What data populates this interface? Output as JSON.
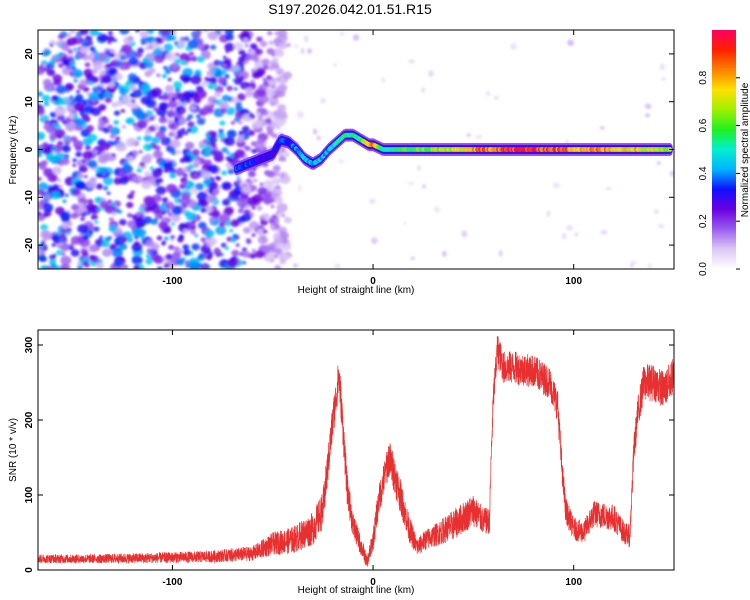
{
  "title": "S197.2026.042.01.51.R15",
  "chart_data": [
    {
      "type": "heatmap",
      "panel": "spectrogram",
      "xlabel": "Height of straight line (km)",
      "ylabel": "Frequency (Hz)",
      "xlim": [
        -167,
        150
      ],
      "ylim": [
        -25,
        25
      ],
      "xticks": [
        -100,
        0,
        100
      ],
      "xtick_labels": [
        "-100",
        "0",
        "100"
      ],
      "yticks": [
        -20,
        -10,
        0,
        10,
        20
      ],
      "ytick_labels": [
        "-20",
        "-10",
        "0",
        "10",
        "20"
      ],
      "colorbar": {
        "label": "Normalized spectral amplitude",
        "range": [
          0,
          1
        ],
        "ticks": [
          0.0,
          0.2,
          0.4,
          0.6,
          0.8
        ],
        "tick_labels": [
          "0.0",
          "0.2",
          "0.4",
          "0.6",
          "0.8"
        ],
        "colormap": [
          "#ffffff",
          "#dcc8f5",
          "#9a5cf0",
          "#6a00e0",
          "#1010ff",
          "#00b4ff",
          "#00f0d0",
          "#20f020",
          "#a0f000",
          "#ffe000",
          "#ff8000",
          "#ff2000",
          "#ff0060"
        ]
      },
      "noise_region_x": [
        -167,
        -42
      ],
      "ridge": {
        "x": [
          -68,
          -62,
          -56,
          -50,
          -46,
          -42,
          -38,
          -34,
          -30,
          -26,
          -22,
          -18,
          -14,
          -10,
          -6,
          -2,
          0,
          5,
          10,
          20,
          40,
          60,
          80,
          100,
          120,
          140,
          148
        ],
        "freq": [
          -4,
          -3,
          -2,
          -1,
          2,
          1.5,
          0,
          -2,
          -3,
          -2,
          0,
          1.5,
          3,
          3,
          2,
          1,
          1,
          0,
          0,
          0,
          0,
          0,
          0,
          0,
          0,
          0,
          0
        ],
        "amplitude": [
          0.4,
          0.35,
          0.3,
          0.3,
          0.35,
          0.35,
          0.4,
          0.45,
          0.45,
          0.45,
          0.45,
          0.5,
          0.55,
          0.55,
          0.6,
          0.75,
          0.8,
          0.5,
          0.55,
          0.6,
          0.7,
          0.9,
          0.95,
          0.85,
          0.8,
          0.75,
          0.7
        ]
      }
    },
    {
      "type": "line",
      "panel": "snr",
      "xlabel": "Height of straight line (km)",
      "ylabel": "SNR (10 * v/v)",
      "xlim": [
        -167,
        150
      ],
      "ylim": [
        0,
        320
      ],
      "xticks": [
        -100,
        0,
        100
      ],
      "xtick_labels": [
        "-100",
        "0",
        "100"
      ],
      "yticks": [
        0,
        100,
        200,
        300
      ],
      "ytick_labels": [
        "0",
        "100",
        "200",
        "300"
      ],
      "color": "#e83030",
      "series": [
        {
          "name": "SNR",
          "x": [
            -167,
            -140,
            -110,
            -80,
            -60,
            -50,
            -40,
            -30,
            -25,
            -20,
            -17,
            -15,
            -13,
            -10,
            -5,
            -3,
            0,
            3,
            8,
            12,
            18,
            22,
            26,
            30,
            40,
            50,
            55,
            58,
            59,
            60,
            62,
            65,
            70,
            80,
            88,
            92,
            94,
            96,
            100,
            105,
            110,
            120,
            125,
            128,
            130,
            132,
            135,
            140,
            145,
            150
          ],
          "y": [
            15,
            15,
            16,
            18,
            22,
            35,
            40,
            55,
            80,
            200,
            260,
            190,
            110,
            60,
            25,
            10,
            40,
            95,
            150,
            115,
            55,
            30,
            40,
            45,
            60,
            80,
            65,
            65,
            160,
            230,
            295,
            270,
            270,
            265,
            250,
            220,
            140,
            80,
            55,
            50,
            75,
            70,
            50,
            45,
            160,
            210,
            250,
            250,
            240,
            260
          ],
          "jitter": [
            6,
            6,
            7,
            8,
            10,
            15,
            18,
            22,
            25,
            25,
            25,
            25,
            22,
            18,
            12,
            8,
            15,
            20,
            25,
            25,
            18,
            12,
            14,
            15,
            20,
            22,
            18,
            18,
            20,
            22,
            22,
            22,
            22,
            22,
            22,
            22,
            20,
            18,
            15,
            15,
            18,
            18,
            15,
            15,
            20,
            22,
            25,
            25,
            25,
            25
          ]
        }
      ]
    }
  ]
}
